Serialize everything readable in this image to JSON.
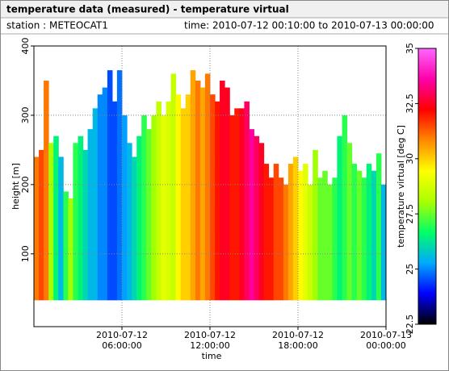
{
  "header": {
    "title": "temperature data (measured) - temperature virtual",
    "station": "station : METEOCAT1",
    "time": "time: 2010-07-12 00:10:00 to 2010-07-13 00:00:00"
  },
  "chart_data": {
    "type": "colorbar",
    "xlabel": "time",
    "ylabel": "height [m]",
    "colorbar_label": "temperature virtual [deg C]",
    "x": [
      0.17,
      0.5,
      0.83,
      1.17,
      1.5,
      1.83,
      2.17,
      2.5,
      2.83,
      3.17,
      3.5,
      3.83,
      4.17,
      4.5,
      4.83,
      5.17,
      5.5,
      5.83,
      6.17,
      6.5,
      6.83,
      7.17,
      7.5,
      7.83,
      8.17,
      8.5,
      8.83,
      9.17,
      9.5,
      9.83,
      10.17,
      10.5,
      10.83,
      11.17,
      11.5,
      11.83,
      12.17,
      12.5,
      12.83,
      13.17,
      13.5,
      13.83,
      14.17,
      14.5,
      14.83,
      15.17,
      15.5,
      15.83,
      16.17,
      16.5,
      16.83,
      17.17,
      17.5,
      17.83,
      18.17,
      18.5,
      18.83,
      19.17,
      19.5,
      19.83,
      20.17,
      20.5,
      20.83,
      21.17,
      21.5,
      21.83,
      22.17,
      22.5,
      22.83,
      23.17,
      23.5,
      23.83
    ],
    "bar_width": 0.3333,
    "base": 33,
    "heights": [
      240,
      250,
      350,
      260,
      270,
      240,
      190,
      180,
      260,
      270,
      250,
      280,
      310,
      330,
      340,
      365,
      320,
      365,
      300,
      260,
      240,
      270,
      300,
      280,
      300,
      320,
      300,
      320,
      360,
      330,
      310,
      330,
      365,
      350,
      340,
      360,
      330,
      320,
      350,
      340,
      300,
      310,
      310,
      320,
      280,
      270,
      260,
      230,
      210,
      230,
      210,
      200,
      230,
      240,
      220,
      230,
      200,
      250,
      210,
      220,
      200,
      210,
      270,
      300,
      260,
      230,
      220,
      210,
      230,
      220,
      245,
      200
    ],
    "temperatures": [
      31,
      31.5,
      31,
      28,
      26.5,
      25.5,
      27,
      28,
      27,
      26.5,
      26,
      25.5,
      25.5,
      25,
      25,
      24.5,
      24.5,
      24.8,
      25.2,
      25.5,
      26,
      26.5,
      27,
      27.5,
      28,
      28.5,
      29,
      28.8,
      28.5,
      29.5,
      30,
      30,
      30.5,
      31,
      30.5,
      31,
      31.5,
      32,
      32.5,
      32.5,
      32,
      32,
      32.5,
      33,
      33.5,
      33,
      32.5,
      32,
      32,
      31.5,
      31.5,
      31,
      30.5,
      30,
      29.5,
      29,
      28.5,
      28,
      27.5,
      27.5,
      27.5,
      27,
      26.5,
      27,
      27.5,
      27,
      27.5,
      27,
      26.5,
      26,
      27,
      25.5
    ],
    "xlim": [
      0,
      24
    ],
    "ylim": [
      -5,
      400
    ],
    "xticks": [
      {
        "value": 6,
        "label": "2010-07-12\n06:00:00"
      },
      {
        "value": 12,
        "label": "2010-07-12\n12:00:00"
      },
      {
        "value": 18,
        "label": "2010-07-12\n18:00:00"
      },
      {
        "value": 24,
        "label": "2010-07-13\n00:00:00"
      }
    ],
    "yticks": [
      100,
      200,
      300,
      400
    ],
    "clim": [
      22.5,
      35
    ],
    "cticks": [
      22.5,
      25,
      27.5,
      30,
      32.5,
      35
    ],
    "colormap": [
      "#000000",
      "#0000ff",
      "#00aaff",
      "#00ff66",
      "#aaff00",
      "#ffff00",
      "#ff8800",
      "#ff0000",
      "#ff00aa",
      "#ff66ff"
    ],
    "grid": true
  }
}
